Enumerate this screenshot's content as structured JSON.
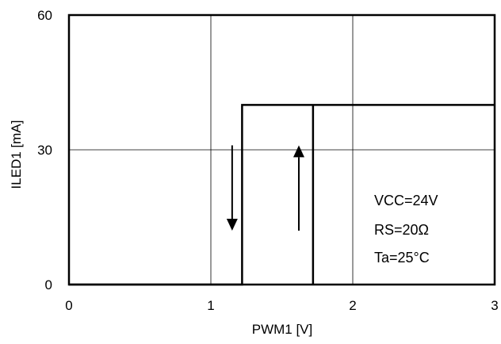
{
  "chart_data": {
    "type": "line",
    "xlabel": "PWM1 [V]",
    "ylabel": "ILED1 [mA]",
    "xlim": [
      0,
      3
    ],
    "ylim": [
      0,
      60
    ],
    "x_ticks": [
      "0",
      "1",
      "2",
      "3"
    ],
    "y_ticks": [
      "0",
      "30",
      "60"
    ],
    "grid": true,
    "series": [
      {
        "x": [
          0,
          1.22,
          1.22,
          1.72,
          1.72,
          3
        ],
        "y": [
          0,
          0,
          40,
          40,
          40,
          40
        ]
      },
      {
        "x": [
          1.72,
          1.72
        ],
        "y": [
          0,
          40
        ]
      }
    ],
    "annotations": [
      "VCC=24V",
      "RS=20Ω",
      "Ta=25°C"
    ],
    "arrows": [
      {
        "direction": "down",
        "x": 1.15,
        "y_from": 31,
        "y_to": 12
      },
      {
        "direction": "up",
        "x": 1.62,
        "y_from": 12,
        "y_to": 31
      }
    ]
  }
}
